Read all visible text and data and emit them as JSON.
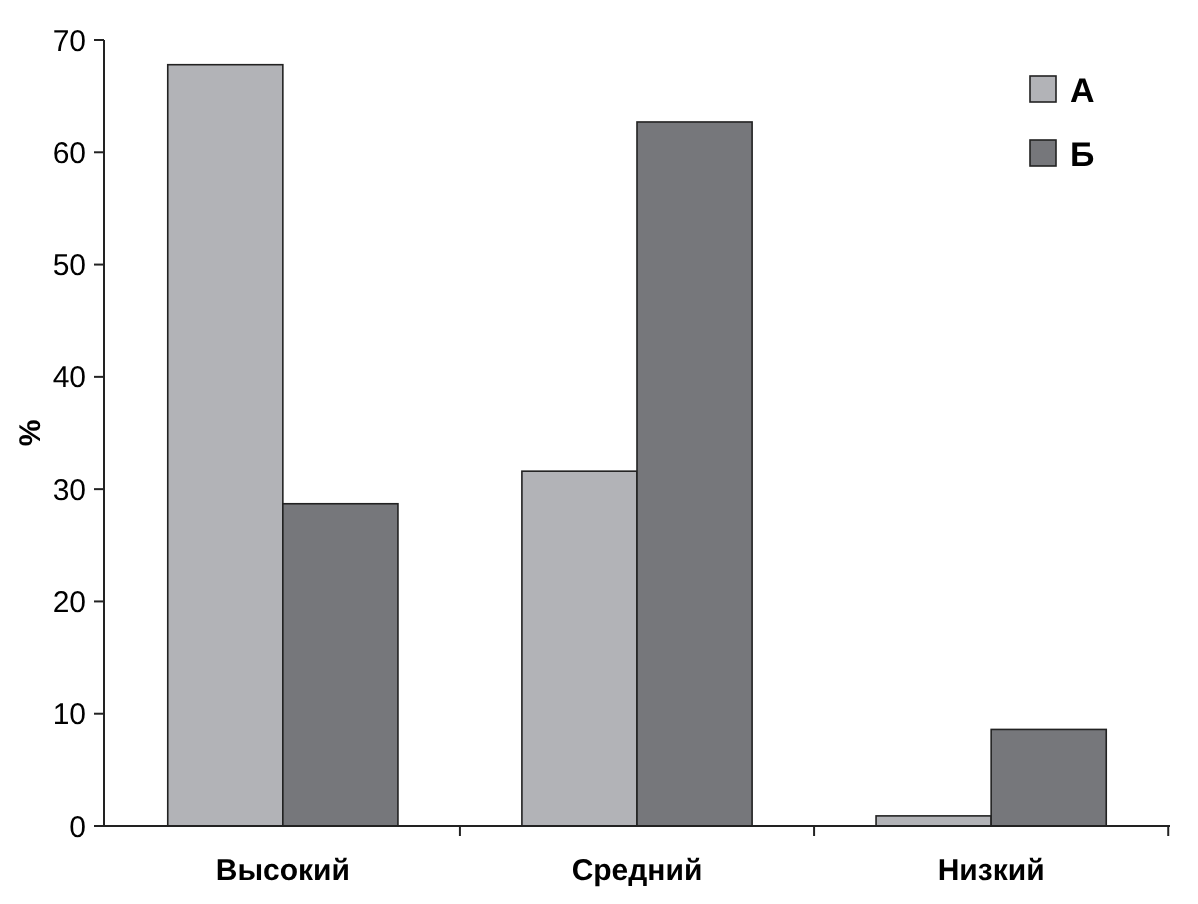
{
  "chart_data": {
    "type": "bar",
    "ylabel": "%",
    "categories": [
      "Высокий",
      "Средний",
      "Низкий"
    ],
    "series": [
      {
        "name": "А",
        "color": "#b2b3b7",
        "values": [
          67.8,
          31.6,
          0.9
        ]
      },
      {
        "name": "Б",
        "color": "#76777b",
        "values": [
          28.7,
          62.7,
          8.6
        ]
      }
    ],
    "ylim": [
      0,
      70
    ],
    "yticks": [
      0,
      10,
      20,
      30,
      40,
      50,
      60,
      70
    ],
    "grid": false,
    "legend": "top right"
  }
}
